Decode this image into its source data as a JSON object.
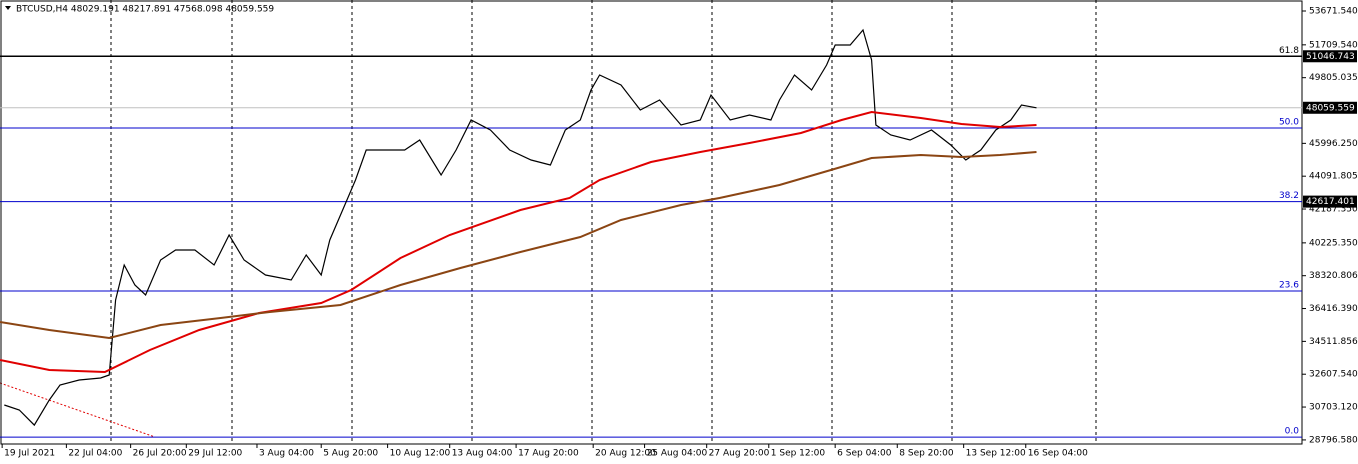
{
  "chart_data": {
    "type": "line",
    "title": "BTCUSD,H4  48029.191 48217.891 47568.098 48059.559",
    "xlim": [
      0,
      608
    ],
    "ylim": [
      28560,
      54310
    ],
    "xticks": [
      {
        "value": 1,
        "label": "19 Jul 2021"
      },
      {
        "value": 31,
        "label": "22 Jul 04:00"
      },
      {
        "value": 61,
        "label": "26 Jul 20:00"
      },
      {
        "value": 87,
        "label": "29 Jul 12:00"
      },
      {
        "value": 120,
        "label": "3 Aug 04:00"
      },
      {
        "value": 150,
        "label": "5 Aug 20:00"
      },
      {
        "value": 181,
        "label": "10 Aug 12:00"
      },
      {
        "value": 210,
        "label": "13 Aug 04:00"
      },
      {
        "value": 241,
        "label": "17 Aug 20:00"
      },
      {
        "value": 277,
        "label": "20 Aug 12:00"
      },
      {
        "value": 301,
        "label": "25 Aug 04:00"
      },
      {
        "value": 330,
        "label": "27 Aug 20:00"
      },
      {
        "value": 359,
        "label": "1 Sep 12:00"
      },
      {
        "value": 390,
        "label": "6 Sep 04:00"
      },
      {
        "value": 419,
        "label": "8 Sep 20:00"
      },
      {
        "value": 450,
        "label": "13 Sep 12:00"
      },
      {
        "value": 479,
        "label": "16 Sep 04:00"
      }
    ],
    "yticks": [
      {
        "value": 53671.54,
        "label": "53671.540"
      },
      {
        "value": 51709.54,
        "label": "51709.540"
      },
      49805.035,
      {
        "value": 45996.25,
        "label": "45996.250"
      },
      44091.805,
      {
        "value": 42187.35,
        "label": "42187.350"
      },
      {
        "value": 40225.35,
        "label": "40225.350"
      },
      38320.806,
      {
        "value": 36416.39,
        "label": "36416.390"
      },
      34511.856,
      {
        "value": 32607.54,
        "label": "32607.540"
      },
      {
        "value": 30703.12,
        "label": "30703.120"
      },
      {
        "value": 28796.58,
        "label": "28796.580"
      }
    ],
    "levels": [
      {
        "value": 51046.743,
        "label": "61.8",
        "color": "#000000"
      },
      {
        "value": 46885,
        "label": "50.0",
        "color": "#0000cc"
      },
      {
        "value": 42617.401,
        "label": "38.2",
        "color": "#0000cc"
      },
      {
        "value": 37430,
        "label": "23.6",
        "color": "#0000cc"
      },
      {
        "value": 28960,
        "label": "0.0",
        "color": "#0000cc"
      }
    ],
    "price_labels": [
      51046.743,
      48059.559,
      42617.401
    ],
    "current_price": 48059.559,
    "series": [
      {
        "color": "#000000",
        "x": [
          2,
          9,
          16,
          23,
          28,
          37,
          47,
          51,
          54,
          58,
          63,
          68,
          75,
          82,
          91,
          100,
          107,
          114,
          124,
          136,
          143,
          150,
          154,
          161,
          166,
          171,
          180,
          189,
          196,
          206,
          213,
          220,
          229,
          238,
          248,
          257,
          264,
          271,
          276,
          280,
          290,
          299,
          308,
          318,
          327,
          332,
          341,
          350,
          360,
          364,
          371,
          379,
          386,
          390,
          397,
          403,
          407,
          409,
          416,
          425,
          435,
          444,
          451,
          458,
          465,
          472,
          477,
          484
        ],
        "values": [
          30819,
          30529,
          29659,
          31109,
          31979,
          32269,
          32385,
          32559,
          36909,
          38939,
          37779,
          37199,
          39229,
          39809,
          39809,
          38939,
          40679,
          39229,
          38359,
          38069,
          39519,
          38359,
          40389,
          42419,
          43869,
          45609,
          45609,
          45609,
          46189,
          44159,
          45609,
          47349,
          46769,
          45609,
          45029,
          44739,
          46769,
          47349,
          49089,
          49959,
          49379,
          47929,
          48509,
          47059,
          47349,
          48799,
          47349,
          47639,
          47349,
          48509,
          49959,
          49089,
          50539,
          51699,
          51699,
          52569,
          50829,
          47059,
          46479,
          46189,
          46769,
          45899,
          45029,
          45609,
          46769,
          47349,
          48219,
          48059.559
        ]
      },
      {
        "color": "#e00000",
        "x": [
          0,
          23,
          49,
          70,
          93,
          121,
          150,
          164,
          187,
          210,
          243,
          266,
          280,
          304,
          327,
          350,
          374,
          393,
          407,
          430,
          449,
          467,
          484
        ],
        "values": [
          33429,
          32849,
          32733,
          34009,
          35169,
          36155,
          36735,
          37489,
          39345,
          40679,
          42129,
          42825,
          43869,
          44913,
          45493,
          46015,
          46595,
          47349,
          47813,
          47465,
          47117,
          46943,
          47059
        ]
      },
      {
        "color": "#8b4513",
        "x": [
          0,
          23,
          51,
          75,
          103,
          126,
          159,
          187,
          215,
          243,
          271,
          290,
          318,
          336,
          364,
          388,
          407,
          430,
          449,
          467,
          484
        ],
        "values": [
          35633,
          35169,
          34705,
          35459,
          35865,
          36213,
          36619,
          37779,
          38765,
          39693,
          40563,
          41549,
          42419,
          42825,
          43579,
          44449,
          45145,
          45319,
          45203,
          45319,
          45493
        ]
      }
    ]
  }
}
